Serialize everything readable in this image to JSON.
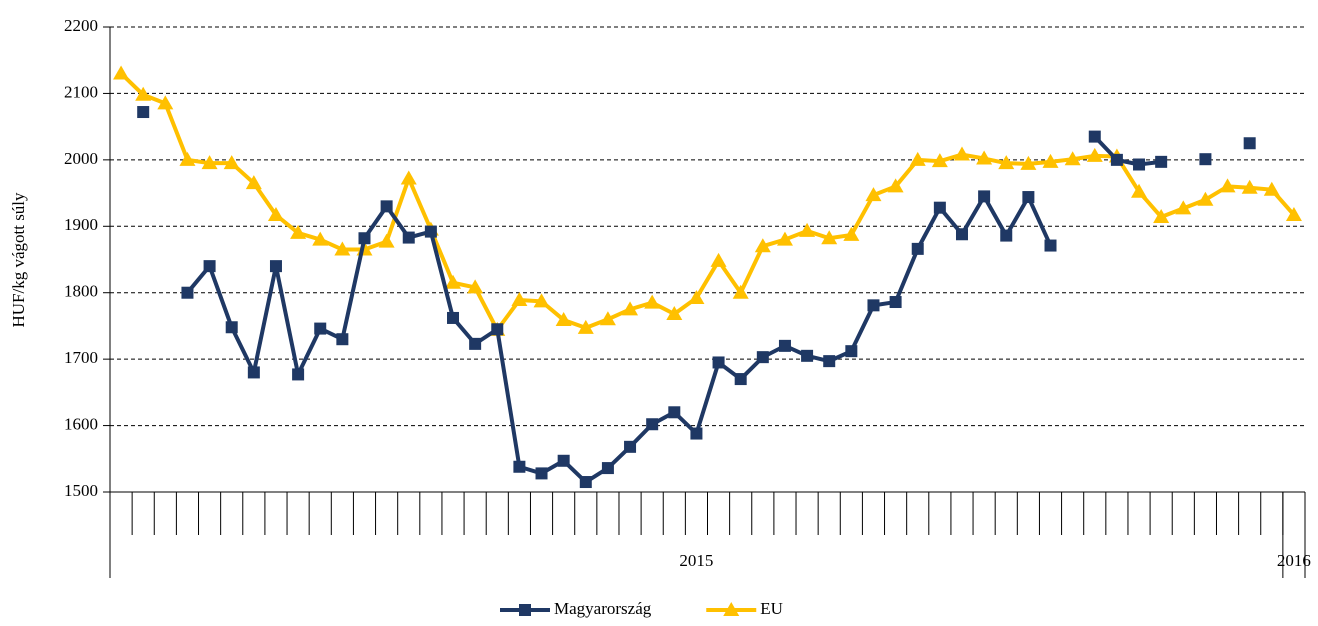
{
  "chart_data": {
    "type": "line",
    "y_label": "HUF/kg vágott súly",
    "categories": [
      null,
      null,
      null,
      null,
      null,
      null,
      null,
      null,
      null,
      null,
      null,
      null,
      null,
      null,
      null,
      null,
      null,
      null,
      null,
      null,
      null,
      null,
      null,
      null,
      null,
      null,
      null,
      null,
      null,
      null,
      null,
      null,
      null,
      null,
      null,
      null,
      null,
      null,
      null,
      null,
      null,
      null,
      null,
      null,
      null,
      null,
      null,
      null,
      null,
      null,
      null,
      null,
      null,
      null
    ],
    "category_groups": [
      "2015",
      "2016"
    ],
    "category_group_sizes": [
      53,
      1
    ],
    "series": [
      {
        "name": "Magyarország",
        "color": "#1f3864",
        "marker": "square",
        "values": [
          null,
          2072,
          null,
          1800,
          1840,
          1748,
          1680,
          1840,
          1677,
          1746,
          1730,
          1882,
          1930,
          1883,
          1892,
          1762,
          1723,
          1745,
          1538,
          1528,
          1547,
          1515,
          1536,
          1568,
          1602,
          1620,
          1588,
          1695,
          1670,
          1703,
          1720,
          1705,
          1697,
          1712,
          1781,
          1786,
          1866,
          1928,
          1888,
          1945,
          1886,
          1944,
          1871,
          null,
          2035,
          2000,
          1993,
          1997,
          null,
          2001,
          null,
          2025,
          null,
          null
        ]
      },
      {
        "name": "EU",
        "color": "#ffc000",
        "marker": "triangle",
        "values": [
          2130,
          2098,
          2085,
          2000,
          1995,
          1995,
          1965,
          1917,
          1890,
          1880,
          1865,
          1865,
          1877,
          1972,
          1895,
          1815,
          1808,
          1744,
          1789,
          1787,
          1759,
          1747,
          1760,
          1775,
          1785,
          1768,
          1792,
          1848,
          1800,
          1870,
          1880,
          1893,
          1882,
          1887,
          1947,
          1960,
          2000,
          1998,
          2008,
          2002,
          1995,
          1994,
          1997,
          2001,
          2006,
          2005,
          1952,
          1914,
          1927,
          1940,
          1960,
          1958,
          1955,
          1917
        ]
      }
    ],
    "ylim": [
      1500,
      2200
    ],
    "yticks": [
      1500,
      1600,
      1700,
      1800,
      1900,
      2000,
      2100,
      2200
    ],
    "grid": true,
    "legend": "bottom"
  }
}
